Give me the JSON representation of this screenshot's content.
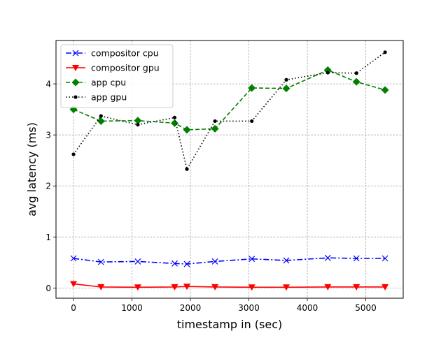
{
  "chart_data": {
    "type": "line",
    "title": "",
    "xlabel": "timestamp in (sec)",
    "ylabel": "avg latency (ms)",
    "xlim": [
      -300,
      5640
    ],
    "ylim": [
      -0.2,
      4.85
    ],
    "xticks": [
      0,
      1000,
      2000,
      3000,
      4000,
      5000
    ],
    "yticks": [
      0,
      1,
      2,
      3,
      4
    ],
    "grid": true,
    "legend_position": "top-left",
    "series": [
      {
        "name": "compositor cpu",
        "color": "#0000ff",
        "linestyle": "dashdot",
        "marker": "x",
        "x": [
          0,
          470,
          1100,
          1730,
          1940,
          2420,
          3050,
          3640,
          4350,
          4840,
          5330
        ],
        "y": [
          0.58,
          0.51,
          0.52,
          0.48,
          0.47,
          0.52,
          0.57,
          0.54,
          0.59,
          0.58,
          0.58
        ]
      },
      {
        "name": "compositor gpu",
        "color": "#ff0000",
        "linestyle": "solid",
        "marker": "triangle-down",
        "x": [
          0,
          470,
          1100,
          1730,
          1940,
          2420,
          3050,
          3640,
          4350,
          4840,
          5330
        ],
        "y": [
          0.08,
          0.02,
          0.015,
          0.02,
          0.03,
          0.02,
          0.015,
          0.015,
          0.02,
          0.02,
          0.02
        ]
      },
      {
        "name": "app cpu",
        "color": "#008000",
        "linestyle": "dashed",
        "marker": "diamond",
        "x": [
          0,
          470,
          1100,
          1730,
          1940,
          2420,
          3050,
          3640,
          4350,
          4840,
          5330
        ],
        "y": [
          3.5,
          3.27,
          3.28,
          3.23,
          3.1,
          3.12,
          3.92,
          3.91,
          4.27,
          4.04,
          3.88
        ]
      },
      {
        "name": "app gpu",
        "color": "#000000",
        "linestyle": "dotted",
        "marker": "point",
        "x": [
          0,
          470,
          1100,
          1730,
          1940,
          2420,
          3050,
          3640,
          4350,
          4840,
          5330
        ],
        "y": [
          2.62,
          3.37,
          3.2,
          3.34,
          2.33,
          3.27,
          3.27,
          4.08,
          4.22,
          4.21,
          4.62
        ]
      }
    ]
  }
}
